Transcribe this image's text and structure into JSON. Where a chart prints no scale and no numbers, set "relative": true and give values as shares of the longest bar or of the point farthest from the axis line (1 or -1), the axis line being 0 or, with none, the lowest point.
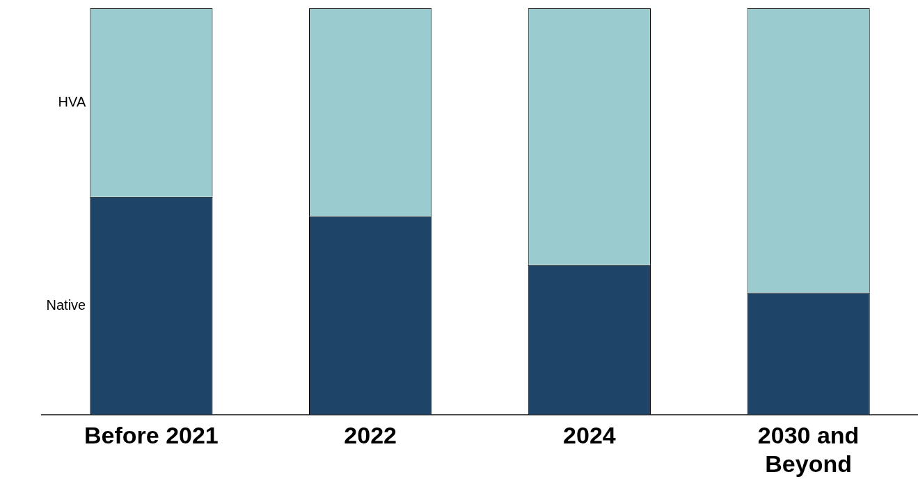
{
  "chart_data": {
    "type": "bar",
    "stacked": true,
    "relative": true,
    "legend": false,
    "categories": [
      "Before 2021",
      "2022",
      "2024",
      "2030 and Beyond"
    ],
    "series": [
      {
        "name": "Native",
        "color": "#1e4568",
        "values": [
          0.536,
          0.488,
          0.368,
          0.3
        ]
      },
      {
        "name": "HVA",
        "color": "#9acbce",
        "values": [
          0.464,
          0.512,
          0.632,
          0.7
        ]
      }
    ]
  }
}
